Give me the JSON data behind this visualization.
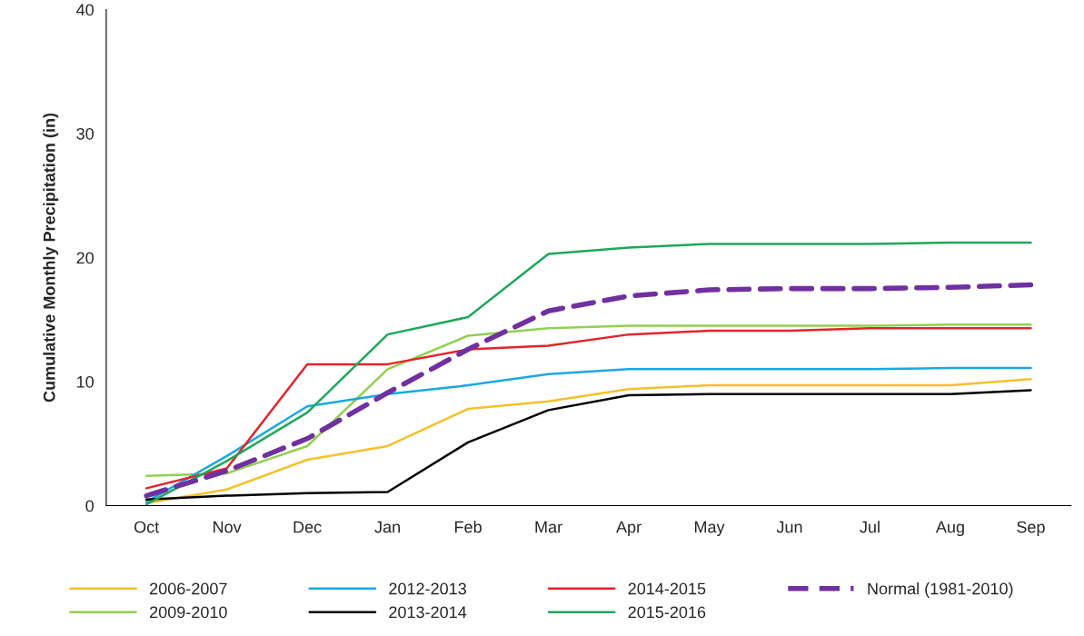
{
  "chart_data": {
    "type": "line",
    "ylabel": "Cumulative Monthly Precipitation (in)",
    "categories": [
      "Oct",
      "Nov",
      "Dec",
      "Jan",
      "Feb",
      "Mar",
      "Apr",
      "May",
      "Jun",
      "Jul",
      "Aug",
      "Sep"
    ],
    "ylim": [
      0,
      40
    ],
    "yticks": [
      0,
      10,
      20,
      30,
      40
    ],
    "grid": false,
    "legend": "bottom",
    "marker": "none",
    "series": [
      {
        "name": "2006-2007",
        "color": "#f5c02a",
        "values": [
          0.2,
          1.3,
          3.7,
          4.8,
          7.8,
          8.4,
          9.4,
          9.7,
          9.7,
          9.7,
          9.7,
          10.2
        ]
      },
      {
        "name": "2009-2010",
        "color": "#92d050",
        "values": [
          2.4,
          2.6,
          4.8,
          11.0,
          13.7,
          14.3,
          14.5,
          14.5,
          14.5,
          14.5,
          14.6,
          14.6
        ]
      },
      {
        "name": "2012-2013",
        "color": "#1ba8e0",
        "values": [
          0.3,
          4.0,
          8.0,
          9.0,
          9.7,
          10.6,
          11.0,
          11.0,
          11.0,
          11.0,
          11.1,
          11.1
        ]
      },
      {
        "name": "2013-2014",
        "color": "#000000",
        "values": [
          0.5,
          0.8,
          1.0,
          1.1,
          5.1,
          7.7,
          8.9,
          9.0,
          9.0,
          9.0,
          9.0,
          9.3
        ]
      },
      {
        "name": "2014-2015",
        "color": "#e3242b",
        "values": [
          1.4,
          3.0,
          11.4,
          11.4,
          12.6,
          12.9,
          13.8,
          14.1,
          14.1,
          14.3,
          14.3,
          14.3
        ]
      },
      {
        "name": "2015-2016",
        "color": "#1ea85a",
        "values": [
          0.1,
          3.6,
          7.5,
          13.8,
          15.2,
          20.3,
          20.8,
          21.1,
          21.1,
          21.1,
          21.2,
          21.2
        ]
      },
      {
        "name": "Normal (1981-2010)",
        "color": "#7030a0",
        "line_style": "dashed",
        "values": [
          0.8,
          2.8,
          5.4,
          9.1,
          12.6,
          15.7,
          16.9,
          17.4,
          17.5,
          17.5,
          17.6,
          17.8
        ]
      }
    ]
  }
}
